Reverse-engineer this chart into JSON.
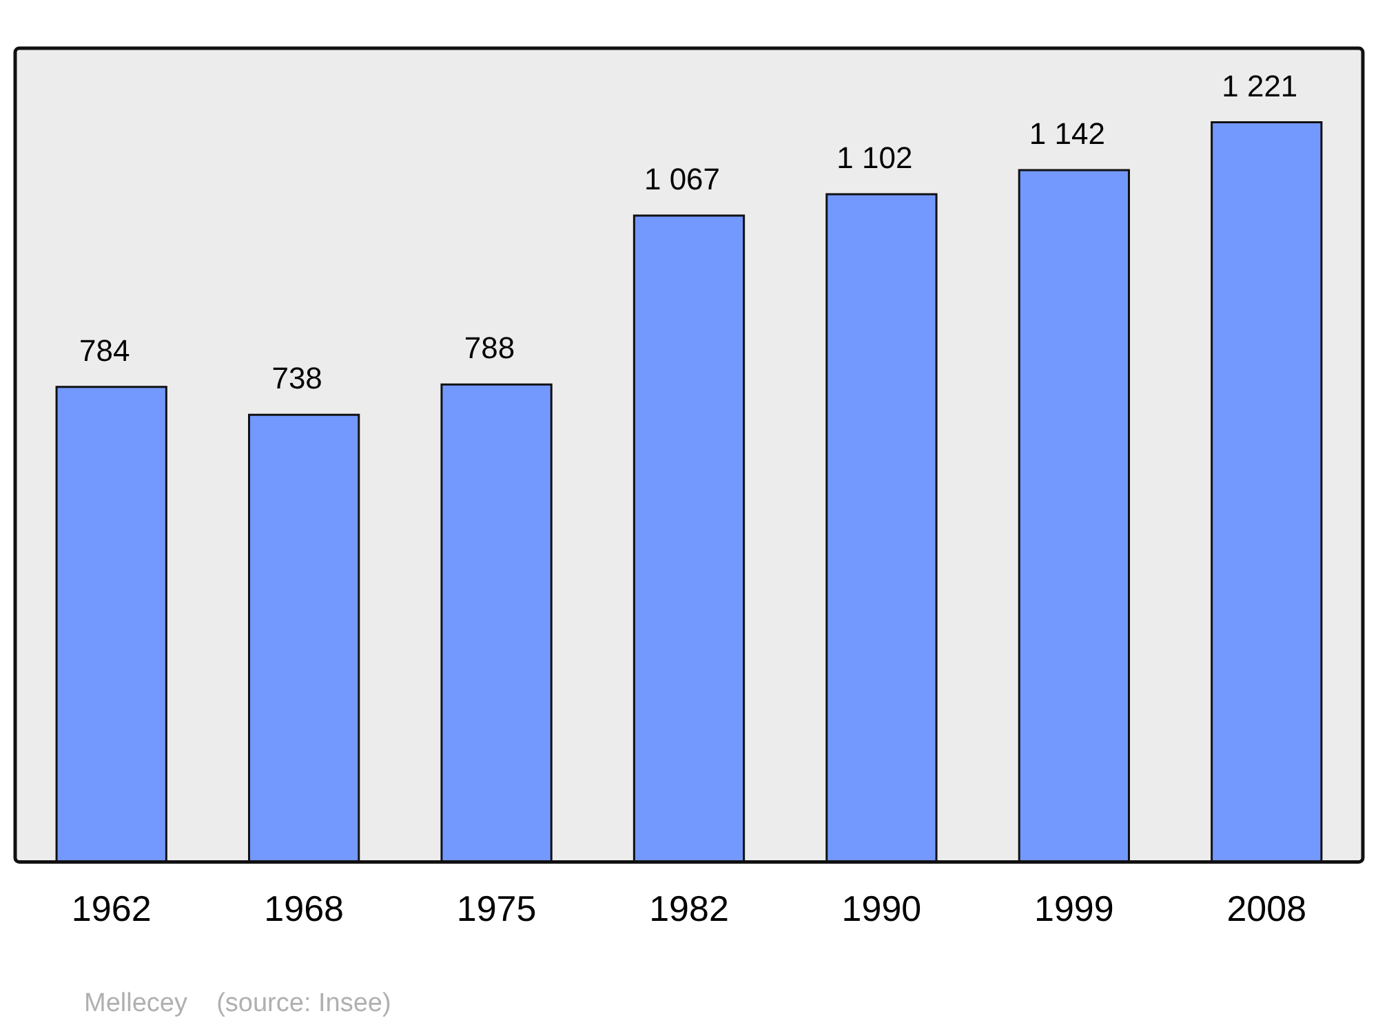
{
  "chart_data": {
    "type": "bar",
    "categories": [
      "1962",
      "1968",
      "1975",
      "1982",
      "1990",
      "1999",
      "2008"
    ],
    "values": [
      784,
      738,
      788,
      1067,
      1102,
      1142,
      1221
    ],
    "value_labels": [
      "784",
      "738",
      "788",
      "1 067",
      "1 102",
      "1 142",
      "1 221"
    ],
    "color": "#7399ff",
    "grid": false,
    "legend": false,
    "annotations": [
      "Mellecey    (source: Insee)"
    ]
  }
}
